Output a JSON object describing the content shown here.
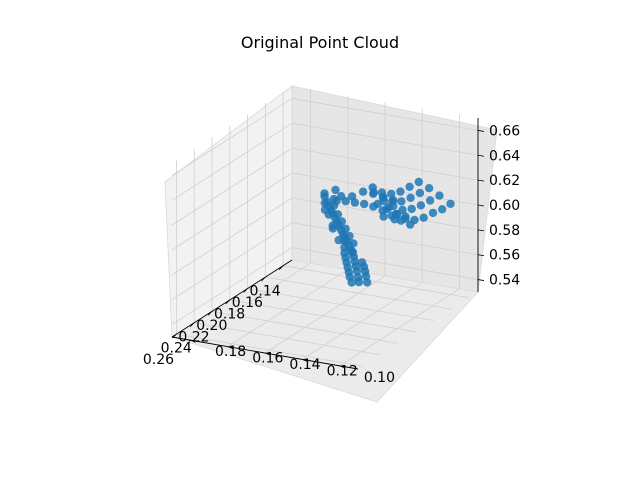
{
  "chart_data": {
    "type": "scatter",
    "projection": "3d",
    "title": "Original Point Cloud",
    "xlabel": "",
    "ylabel": "",
    "zlabel": "",
    "x_ticks": [
      "0.14",
      "0.16",
      "0.18",
      "0.20",
      "0.22",
      "0.24",
      "0.26"
    ],
    "y_ticks": [
      "0.10",
      "0.12",
      "0.14",
      "0.16",
      "0.18"
    ],
    "z_ticks": [
      "0.54",
      "0.56",
      "0.58",
      "0.60",
      "0.62",
      "0.64",
      "0.66"
    ],
    "xlim": [
      0.13,
      0.265
    ],
    "ylim": [
      0.09,
      0.19
    ],
    "zlim": [
      0.53,
      0.67
    ],
    "grid": true,
    "marker_color": "#1f77b4",
    "series": [
      {
        "points": [
          [
            0.14,
            0.1,
            0.603
          ],
          [
            0.141,
            0.104,
            0.598
          ],
          [
            0.143,
            0.108,
            0.595
          ],
          [
            0.145,
            0.112,
            0.591
          ],
          [
            0.147,
            0.116,
            0.589
          ],
          [
            0.149,
            0.12,
            0.59
          ],
          [
            0.15,
            0.124,
            0.593
          ],
          [
            0.151,
            0.128,
            0.598
          ],
          [
            0.14,
            0.106,
            0.608
          ],
          [
            0.142,
            0.11,
            0.604
          ],
          [
            0.144,
            0.114,
            0.6
          ],
          [
            0.146,
            0.118,
            0.597
          ],
          [
            0.148,
            0.122,
            0.596
          ],
          [
            0.15,
            0.126,
            0.599
          ],
          [
            0.152,
            0.13,
            0.603
          ],
          [
            0.139,
            0.112,
            0.612
          ],
          [
            0.141,
            0.116,
            0.608
          ],
          [
            0.143,
            0.12,
            0.604
          ],
          [
            0.145,
            0.124,
            0.601
          ],
          [
            0.147,
            0.128,
            0.601
          ],
          [
            0.149,
            0.132,
            0.604
          ],
          [
            0.151,
            0.136,
            0.608
          ],
          [
            0.138,
            0.118,
            0.615
          ],
          [
            0.14,
            0.122,
            0.611
          ],
          [
            0.142,
            0.126,
            0.607
          ],
          [
            0.144,
            0.13,
            0.605
          ],
          [
            0.146,
            0.134,
            0.606
          ],
          [
            0.148,
            0.138,
            0.61
          ],
          [
            0.153,
            0.118,
            0.594
          ],
          [
            0.155,
            0.122,
            0.596
          ],
          [
            0.157,
            0.126,
            0.6
          ],
          [
            0.159,
            0.13,
            0.604
          ],
          [
            0.156,
            0.114,
            0.59
          ],
          [
            0.158,
            0.118,
            0.593
          ],
          [
            0.16,
            0.122,
            0.597
          ],
          [
            0.162,
            0.126,
            0.601
          ],
          [
            0.164,
            0.13,
            0.604
          ],
          [
            0.166,
            0.134,
            0.606
          ],
          [
            0.168,
            0.138,
            0.607
          ],
          [
            0.17,
            0.142,
            0.608
          ],
          [
            0.172,
            0.146,
            0.608
          ],
          [
            0.174,
            0.15,
            0.607
          ],
          [
            0.176,
            0.148,
            0.605
          ],
          [
            0.178,
            0.146,
            0.603
          ],
          [
            0.18,
            0.144,
            0.602
          ],
          [
            0.182,
            0.142,
            0.6
          ],
          [
            0.184,
            0.14,
            0.598
          ],
          [
            0.186,
            0.138,
            0.597
          ],
          [
            0.188,
            0.136,
            0.595
          ],
          [
            0.19,
            0.134,
            0.593
          ],
          [
            0.192,
            0.132,
            0.592
          ],
          [
            0.194,
            0.13,
            0.59
          ],
          [
            0.196,
            0.128,
            0.588
          ],
          [
            0.198,
            0.126,
            0.586
          ],
          [
            0.2,
            0.124,
            0.585
          ],
          [
            0.167,
            0.14,
            0.611
          ],
          [
            0.171,
            0.144,
            0.612
          ],
          [
            0.175,
            0.146,
            0.611
          ],
          [
            0.179,
            0.144,
            0.608
          ],
          [
            0.183,
            0.14,
            0.604
          ],
          [
            0.187,
            0.136,
            0.601
          ],
          [
            0.191,
            0.132,
            0.598
          ],
          [
            0.195,
            0.128,
            0.595
          ],
          [
            0.199,
            0.124,
            0.592
          ],
          [
            0.163,
            0.136,
            0.614
          ],
          [
            0.169,
            0.148,
            0.615
          ],
          [
            0.177,
            0.15,
            0.613
          ],
          [
            0.185,
            0.146,
            0.607
          ],
          [
            0.193,
            0.138,
            0.6
          ],
          [
            0.201,
            0.128,
            0.594
          ],
          [
            0.204,
            0.122,
            0.588
          ],
          [
            0.207,
            0.12,
            0.586
          ],
          [
            0.21,
            0.118,
            0.584
          ],
          [
            0.213,
            0.116,
            0.582
          ],
          [
            0.216,
            0.114,
            0.58
          ],
          [
            0.205,
            0.126,
            0.591
          ],
          [
            0.209,
            0.124,
            0.589
          ],
          [
            0.212,
            0.122,
            0.587
          ],
          [
            0.215,
            0.12,
            0.585
          ],
          [
            0.218,
            0.118,
            0.583
          ],
          [
            0.221,
            0.116,
            0.581
          ],
          [
            0.224,
            0.114,
            0.579
          ],
          [
            0.203,
            0.13,
            0.595
          ],
          [
            0.197,
            0.136,
            0.6
          ],
          [
            0.189,
            0.142,
            0.606
          ],
          [
            0.181,
            0.148,
            0.61
          ],
          [
            0.173,
            0.152,
            0.613
          ],
          [
            0.16,
            0.132,
            0.612
          ],
          [
            0.157,
            0.128,
            0.609
          ],
          [
            0.154,
            0.124,
            0.606
          ],
          [
            0.161,
            0.12,
            0.595
          ],
          [
            0.165,
            0.124,
            0.598
          ],
          [
            0.206,
            0.116,
            0.582
          ],
          [
            0.211,
            0.112,
            0.578
          ],
          [
            0.219,
            0.112,
            0.577
          ],
          [
            0.222,
            0.11,
            0.575
          ],
          [
            0.226,
            0.112,
            0.576
          ],
          [
            0.214,
            0.11,
            0.576
          ],
          [
            0.208,
            0.114,
            0.58
          ],
          [
            0.217,
            0.108,
            0.573
          ]
        ]
      }
    ]
  }
}
